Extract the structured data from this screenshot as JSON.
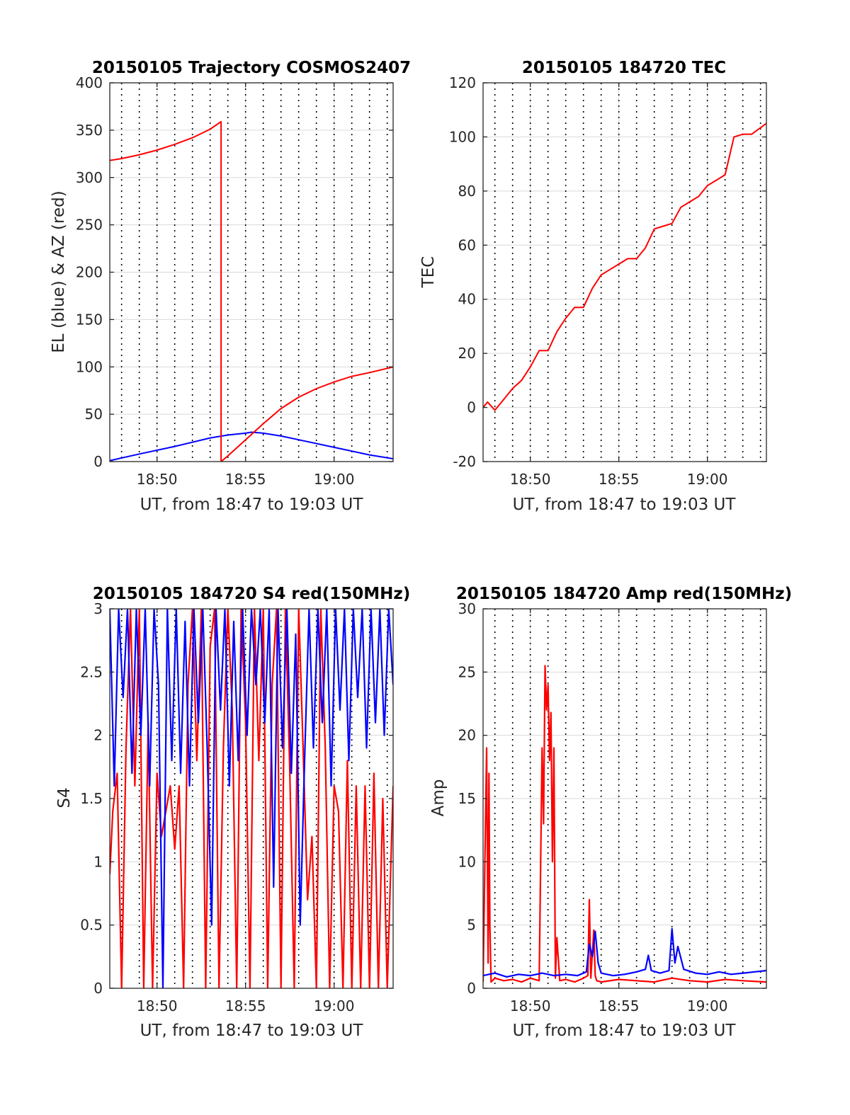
{
  "figure": {
    "panels": [
      {
        "key": "traj",
        "title": "20150105 Trajectory COSMOS2407",
        "xlabel": "UT, from 18:47 to 19:03 UT",
        "ylabel": "EL (blue) & AZ (red)"
      },
      {
        "key": "tec",
        "title": "20150105 184720 TEC",
        "xlabel": "UT, from 18:47 to 19:03 UT",
        "ylabel": "TEC"
      },
      {
        "key": "s4",
        "title": "20150105 184720 S4 red(150MHz)",
        "xlabel": "UT, from 18:47 to 19:03 UT",
        "ylabel": "S4"
      },
      {
        "key": "amp",
        "title": "20150105 184720 Amp red(150MHz)",
        "xlabel": "UT, from 18:47 to 19:03 UT",
        "ylabel": "Amp"
      }
    ]
  },
  "colors": {
    "red": "#ff0000",
    "blue": "#0000ff",
    "grid": "#d9d9d9",
    "dotted": "#000000",
    "axis": "#262626"
  },
  "chart_data": [
    {
      "type": "line",
      "title": "20150105 Trajectory COSMOS2407",
      "xlabel": "UT, from 18:47 to 19:03 UT",
      "ylabel": "EL (blue) & AZ (red)",
      "xlim": [
        "18:47:20",
        "19:03:20"
      ],
      "ylim": [
        0,
        400
      ],
      "xticks": [
        "18:50",
        "18:55",
        "19:00"
      ],
      "yticks": [
        0,
        50,
        100,
        150,
        200,
        250,
        300,
        350,
        400
      ],
      "grid": true,
      "dotted_vertical_lines": [
        "18:48",
        "18:49",
        "18:50",
        "18:51",
        "18:52",
        "18:53",
        "18:54",
        "18:55",
        "18:56",
        "18:57",
        "18:58",
        "18:59",
        "19:00",
        "19:01",
        "19:02",
        "19:03"
      ],
      "series": [
        {
          "color": "#0000ff",
          "x": [
            "18:47:20",
            "18:49:00",
            "18:51:00",
            "18:53:00",
            "18:54:00",
            "18:55:00",
            "18:55:20",
            "18:56:00",
            "18:57:00",
            "18:58:00",
            "19:00:00",
            "19:02:00",
            "19:03:20"
          ],
          "y": [
            1,
            8,
            16,
            25,
            28,
            30,
            31,
            30,
            27,
            23,
            15,
            7,
            3
          ]
        },
        {
          "color": "#ff0000",
          "x": [
            "18:47:20",
            "18:48:00",
            "18:49:00",
            "18:50:00",
            "18:51:00",
            "18:52:00",
            "18:53:00",
            "18:53:37",
            "18:53:37",
            "18:54:00",
            "18:55:00",
            "18:56:00",
            "18:57:00",
            "18:58:00",
            "18:59:00",
            "19:00:00",
            "19:01:00",
            "19:02:00",
            "19:03:20"
          ],
          "y": [
            318,
            320,
            324,
            329,
            335,
            342,
            351,
            359,
            0,
            6,
            23,
            40,
            56,
            68,
            77,
            84,
            90,
            94,
            100
          ]
        }
      ]
    },
    {
      "type": "line",
      "title": "20150105 184720 TEC",
      "xlabel": "UT, from 18:47 to 19:03 UT",
      "ylabel": "TEC",
      "xlim": [
        "18:47:20",
        "19:03:20"
      ],
      "ylim": [
        -20,
        120
      ],
      "xticks": [
        "18:50",
        "18:55",
        "19:00"
      ],
      "yticks": [
        -20,
        0,
        20,
        40,
        60,
        80,
        100,
        120
      ],
      "grid": true,
      "dotted_vertical_lines": [
        "18:48",
        "18:49",
        "18:50",
        "18:51",
        "18:52",
        "18:53",
        "18:54",
        "18:55",
        "18:56",
        "18:57",
        "18:58",
        "18:59",
        "19:00",
        "19:01",
        "19:02",
        "19:03"
      ],
      "series": [
        {
          "color": "#ff0000",
          "x": [
            "18:47:20",
            "18:47:35",
            "18:48:00",
            "18:48:30",
            "18:49:00",
            "18:49:30",
            "18:50:00",
            "18:50:30",
            "18:51:00",
            "18:51:30",
            "18:52:00",
            "18:52:30",
            "18:53:00",
            "18:53:30",
            "18:54:00",
            "18:54:30",
            "18:55:00",
            "18:55:30",
            "18:56:00",
            "18:56:30",
            "18:57:00",
            "18:57:30",
            "18:58:00",
            "18:58:30",
            "18:59:00",
            "18:59:30",
            "19:00:00",
            "19:00:30",
            "19:01:00",
            "19:01:30",
            "19:02:00",
            "19:02:30",
            "19:03:20"
          ],
          "y": [
            0,
            2,
            -1,
            3,
            7,
            10,
            15,
            21,
            21,
            28,
            33,
            37,
            37,
            44,
            49,
            51,
            53,
            55,
            55,
            59,
            66,
            67,
            68,
            74,
            76,
            78,
            82,
            84,
            86,
            100,
            101,
            101,
            105
          ]
        }
      ]
    },
    {
      "type": "line",
      "title": "20150105 184720 S4 red(150MHz)",
      "xlabel": "UT, from 18:47 to 19:03 UT",
      "ylabel": "S4",
      "xlim": [
        "18:47:20",
        "19:03:20"
      ],
      "ylim": [
        0,
        3
      ],
      "xticks": [
        "18:50",
        "18:55",
        "19:00"
      ],
      "yticks": [
        0,
        0.5,
        1,
        1.5,
        2,
        2.5,
        3
      ],
      "grid": true,
      "dotted_vertical_lines": [
        "18:48",
        "18:49",
        "18:50",
        "18:51",
        "18:52",
        "18:53",
        "18:54",
        "18:55",
        "18:56",
        "18:57",
        "18:58",
        "18:59",
        "19:00",
        "19:01",
        "19:02",
        "19:03"
      ],
      "series": [
        {
          "color": "#ff0000",
          "x": [
            "18:47:20",
            "18:47:30",
            "18:47:45",
            "18:48:00",
            "18:48:15",
            "18:48:30",
            "18:48:45",
            "18:49:00",
            "18:49:15",
            "18:49:30",
            "18:49:45",
            "18:50:00",
            "18:50:15",
            "18:50:30",
            "18:50:45",
            "18:51:00",
            "18:51:15",
            "18:51:30",
            "18:51:45",
            "18:52:00",
            "18:52:15",
            "18:52:30",
            "18:52:45",
            "18:53:00",
            "18:53:15",
            "18:53:30",
            "18:53:45",
            "18:54:00",
            "18:54:15",
            "18:54:30",
            "18:54:45",
            "18:55:00",
            "18:55:15",
            "18:55:30",
            "18:55:45",
            "18:56:00",
            "18:56:15",
            "18:56:30",
            "18:56:45",
            "18:57:00",
            "18:57:15",
            "18:57:30",
            "18:57:45",
            "18:58:00",
            "18:58:15",
            "18:58:30",
            "18:58:45",
            "18:59:00",
            "18:59:15",
            "18:59:30",
            "18:59:45",
            "19:00:00",
            "19:00:15",
            "19:00:30",
            "19:00:45",
            "19:01:00",
            "19:01:15",
            "19:01:30",
            "19:01:45",
            "19:02:00",
            "19:02:15",
            "19:02:30",
            "19:02:45",
            "19:03:00",
            "19:03:20"
          ],
          "y": [
            0.9,
            1.4,
            1.7,
            0,
            1.9,
            3,
            1.6,
            3,
            0,
            2.1,
            0,
            1.7,
            1.2,
            1.4,
            1.6,
            1.1,
            1.6,
            0,
            2.4,
            3,
            1.8,
            3,
            0,
            2.7,
            3,
            0,
            1.9,
            3,
            2.2,
            0,
            3,
            2.1,
            0,
            3,
            1.8,
            3,
            0,
            2.4,
            3,
            0,
            3,
            1.7,
            0,
            3,
            1.9,
            0.7,
            1.2,
            0,
            3,
            1.9,
            0,
            1.6,
            1.4,
            0,
            1.8,
            0,
            1.6,
            0,
            1.6,
            0,
            1.7,
            0,
            1.5,
            0,
            1.6
          ]
        },
        {
          "color": "#0000ff",
          "x": [
            "18:47:20",
            "18:47:35",
            "18:47:50",
            "18:48:05",
            "18:48:20",
            "18:48:35",
            "18:48:50",
            "18:49:05",
            "18:49:20",
            "18:49:35",
            "18:49:50",
            "18:50:05",
            "18:50:20",
            "18:50:35",
            "18:50:50",
            "18:51:05",
            "18:51:20",
            "18:51:35",
            "18:51:50",
            "18:52:05",
            "18:52:20",
            "18:52:35",
            "18:52:50",
            "18:53:05",
            "18:53:20",
            "18:53:35",
            "18:53:50",
            "18:54:05",
            "18:54:20",
            "18:54:35",
            "18:54:50",
            "18:55:05",
            "18:55:20",
            "18:55:35",
            "18:55:50",
            "18:56:05",
            "18:56:20",
            "18:56:35",
            "18:56:50",
            "18:57:05",
            "18:57:20",
            "18:57:35",
            "18:57:50",
            "18:58:05",
            "18:58:20",
            "18:58:35",
            "18:58:50",
            "18:59:05",
            "18:59:20",
            "18:59:35",
            "18:59:50",
            "19:00:05",
            "19:00:20",
            "19:00:35",
            "19:00:50",
            "19:01:05",
            "19:01:20",
            "19:01:35",
            "19:01:50",
            "19:02:05",
            "19:02:20",
            "19:02:35",
            "19:02:50",
            "19:03:05",
            "19:03:20"
          ],
          "y": [
            3,
            1.6,
            3,
            2.3,
            3,
            1.7,
            3,
            2,
            3,
            1.6,
            3,
            2.4,
            0,
            3,
            1.8,
            3,
            1.7,
            2.9,
            1.6,
            3,
            2.1,
            3,
            1.9,
            0.5,
            3,
            2.2,
            3,
            1.6,
            2.9,
            1.8,
            3,
            2,
            3,
            2.4,
            3,
            2.1,
            3,
            0.8,
            3,
            1.9,
            3,
            1.7,
            2.8,
            0.5,
            1.8,
            3,
            1.9,
            3,
            2.1,
            3,
            1.6,
            3,
            2.2,
            3,
            1.8,
            3,
            2.3,
            3,
            1.9,
            3,
            2.1,
            3,
            2,
            3,
            2.4
          ]
        }
      ]
    },
    {
      "type": "line",
      "title": "20150105 184720 Amp red(150MHz)",
      "xlabel": "UT, from 18:47 to 19:03 UT",
      "ylabel": "Amp",
      "xlim": [
        "18:47:20",
        "19:03:20"
      ],
      "ylim": [
        0,
        30
      ],
      "xticks": [
        "18:50",
        "18:55",
        "19:00"
      ],
      "yticks": [
        0,
        5,
        10,
        15,
        20,
        25,
        30
      ],
      "grid": true,
      "dotted_vertical_lines": [
        "18:48",
        "18:49",
        "18:50",
        "18:51",
        "18:52",
        "18:53",
        "18:54",
        "18:55",
        "18:56",
        "18:57",
        "18:58",
        "18:59",
        "19:00",
        "19:01",
        "19:02",
        "19:03"
      ],
      "series": [
        {
          "color": "#ff0000",
          "x": [
            "18:47:20",
            "18:47:32",
            "18:47:37",
            "18:47:40",
            "18:47:43",
            "18:47:47",
            "18:48:00",
            "18:48:30",
            "18:49:00",
            "18:49:30",
            "18:50:00",
            "18:50:30",
            "18:50:40",
            "18:50:45",
            "18:50:50",
            "18:50:55",
            "18:51:00",
            "18:51:05",
            "18:51:10",
            "18:51:15",
            "18:51:20",
            "18:51:25",
            "18:51:30",
            "18:51:40",
            "18:52:00",
            "18:52:30",
            "18:53:00",
            "18:53:15",
            "18:53:20",
            "18:53:25",
            "18:53:35",
            "18:53:40",
            "18:53:45",
            "18:54:00",
            "18:55:00",
            "18:56:00",
            "18:57:00",
            "18:58:00",
            "18:59:00",
            "19:00:00",
            "19:01:00",
            "19:02:00",
            "19:03:20"
          ],
          "y": [
            0.5,
            19,
            2,
            17,
            5,
            0.5,
            0.8,
            0.6,
            0.7,
            0.5,
            0.8,
            0.6,
            19,
            13,
            25.5,
            22,
            24,
            18,
            21.8,
            10,
            19,
            0.8,
            4,
            0.6,
            0.7,
            0.5,
            0.8,
            1,
            7,
            0.8,
            4.6,
            1,
            0.6,
            0.5,
            0.7,
            0.6,
            0.5,
            0.8,
            0.6,
            0.5,
            0.7,
            0.6,
            0.5
          ]
        },
        {
          "color": "#0000ff",
          "x": [
            "18:47:20",
            "18:48:00",
            "18:48:40",
            "18:49:20",
            "18:50:00",
            "18:50:40",
            "18:51:20",
            "18:52:00",
            "18:52:40",
            "18:53:10",
            "18:53:20",
            "18:53:30",
            "18:53:40",
            "18:53:50",
            "18:54:00",
            "18:54:40",
            "18:55:20",
            "18:56:00",
            "18:56:30",
            "18:56:40",
            "18:56:50",
            "18:57:20",
            "18:57:50",
            "18:58:00",
            "18:58:10",
            "18:58:20",
            "18:58:40",
            "18:59:20",
            "19:00:00",
            "19:00:40",
            "19:01:20",
            "19:02:00",
            "19:02:40",
            "19:03:20"
          ],
          "y": [
            1,
            1.2,
            0.9,
            1.1,
            1,
            1.2,
            1,
            1.1,
            1,
            1.3,
            3.5,
            2.5,
            4.5,
            2,
            1.2,
            1,
            1.1,
            1.3,
            1.5,
            2.6,
            1.4,
            1.2,
            1.4,
            4.7,
            2,
            3.3,
            1.5,
            1.2,
            1.1,
            1.3,
            1.1,
            1.2,
            1.3,
            1.4
          ]
        }
      ]
    }
  ]
}
